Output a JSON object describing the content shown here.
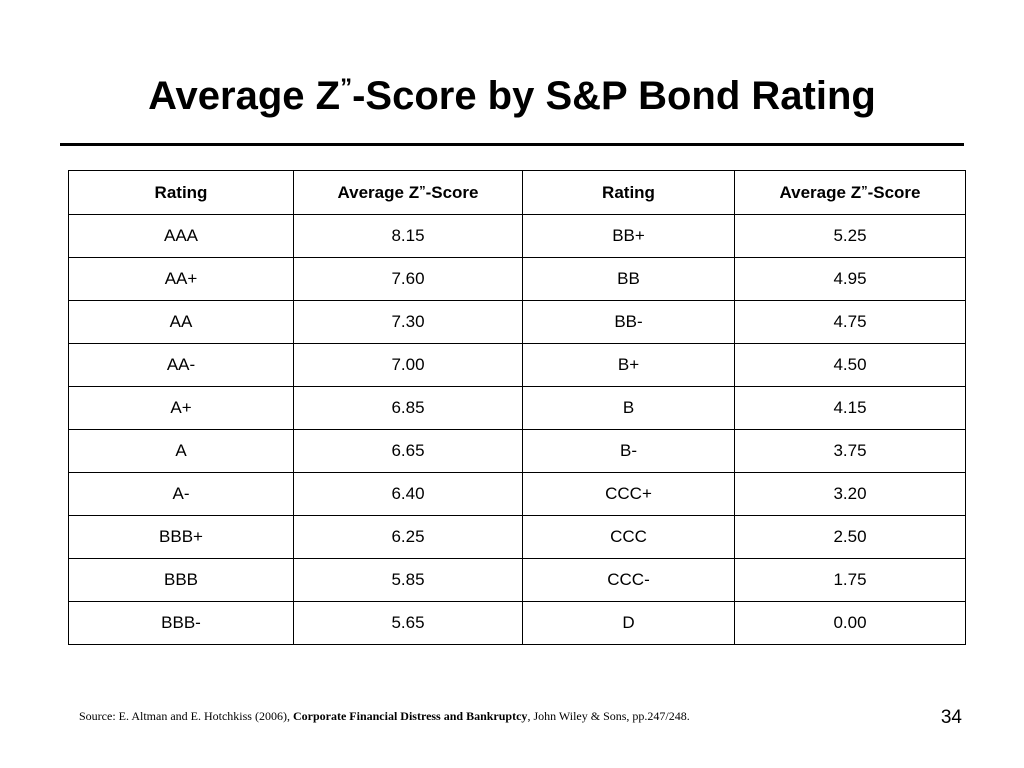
{
  "title": {
    "prefix": "Average Z",
    "mark": "”",
    "suffix": "-Score by S&P Bond Rating"
  },
  "table": {
    "headers": [
      {
        "main": "Rating",
        "mark": "",
        "tail": ""
      },
      {
        "main": "Average Z",
        "mark": "”",
        "tail": "-Score"
      },
      {
        "main": "Rating",
        "mark": "",
        "tail": ""
      },
      {
        "main": "Average Z",
        "mark": "”",
        "tail": "-Score"
      }
    ],
    "rows": [
      [
        "AAA",
        "8.15",
        "BB+",
        "5.25"
      ],
      [
        "AA+",
        "7.60",
        "BB",
        "4.95"
      ],
      [
        "AA",
        "7.30",
        "BB-",
        "4.75"
      ],
      [
        "AA-",
        "7.00",
        "B+",
        "4.50"
      ],
      [
        "A+",
        "6.85",
        "B",
        "4.15"
      ],
      [
        "A",
        "6.65",
        "B-",
        "3.75"
      ],
      [
        "A-",
        "6.40",
        "CCC+",
        "3.20"
      ],
      [
        "BBB+",
        "6.25",
        "CCC",
        "2.50"
      ],
      [
        "BBB",
        "5.85",
        "CCC-",
        "1.75"
      ],
      [
        "BBB-",
        "5.65",
        "D",
        "0.00"
      ]
    ]
  },
  "source": {
    "prefix": "Source: E. Altman and E. Hotchkiss (2006), ",
    "book_title": "Corporate Financial Distress and Bankruptcy",
    "suffix": ", John Wiley & Sons, pp.247/248."
  },
  "page_number": "34"
}
